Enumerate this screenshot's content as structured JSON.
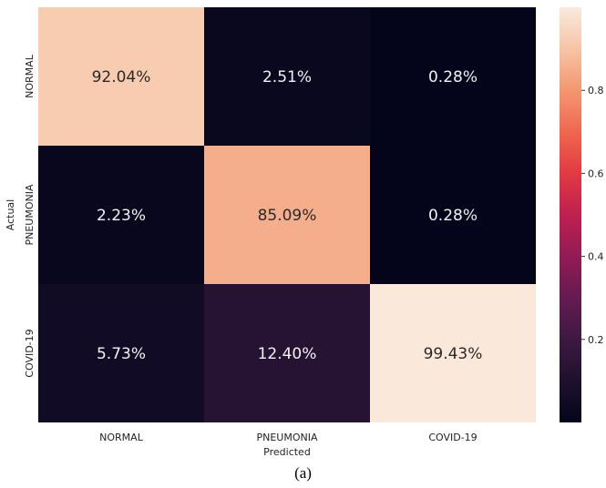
{
  "chart_data": {
    "type": "heatmap",
    "title": "",
    "xlabel": "Predicted",
    "ylabel": "Actual",
    "x_categories": [
      "NORMAL",
      "PNEUMONIA",
      "COVID-19"
    ],
    "y_categories": [
      "NORMAL",
      "PNEUMONIA",
      "COVID-19"
    ],
    "values": [
      [
        0.9204,
        0.0251,
        0.0028
      ],
      [
        0.0223,
        0.8509,
        0.0028
      ],
      [
        0.0573,
        0.124,
        0.9943
      ]
    ],
    "cell_labels": [
      [
        "92.04%",
        "2.51%",
        "0.28%"
      ],
      [
        "2.23%",
        "85.09%",
        "0.28%"
      ],
      [
        "5.73%",
        "12.40%",
        "99.43%"
      ]
    ],
    "colormap": "rocket",
    "colorbar": {
      "range": [
        0,
        1
      ],
      "ticks": [
        0.2,
        0.4,
        0.6,
        0.8
      ],
      "tick_labels": [
        "0.2",
        "0.4",
        "0.6",
        "0.8"
      ]
    }
  },
  "caption": "(a)"
}
